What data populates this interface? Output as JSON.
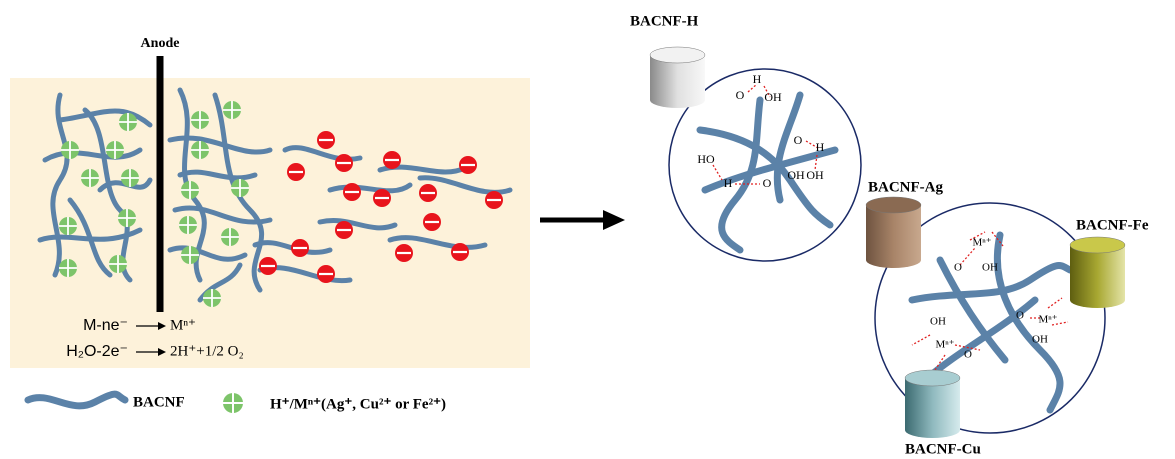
{
  "electrode_label": "Anode",
  "reactions": [
    {
      "left": "M-ne⁻",
      "right": "Mⁿ⁺"
    },
    {
      "left": "H₂O-2e⁻",
      "right": "2H⁺+1/2 O₂"
    }
  ],
  "legend": {
    "fiber": "BACNF",
    "ion": "H⁺/Mⁿ⁺(Ag⁺, Cu²⁺ or Fe²⁺)"
  },
  "products": [
    "BACNF-H",
    "BACNF-Ag",
    "BACNF-Fe",
    "BACNF-Cu"
  ],
  "bacnf_h_groups": [
    "O",
    "H",
    "OH",
    "O",
    "H",
    "OH",
    "HO",
    "H",
    "O",
    "OH"
  ],
  "bacnf_m_groups": [
    "Mⁿ⁺",
    "O",
    "OH",
    "O",
    "Mⁿ⁺",
    "OH",
    "OH",
    "Mⁿ⁺",
    "O"
  ]
}
